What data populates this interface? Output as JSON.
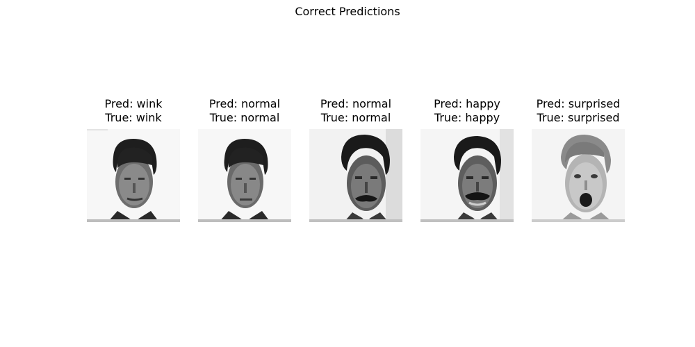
{
  "figure": {
    "title": "Correct Predictions"
  },
  "panels": [
    {
      "pred_label": "Pred: wink",
      "true_label": "True: wink",
      "face": "man-dark-hair-face-icon"
    },
    {
      "pred_label": "Pred: normal",
      "true_label": "True: normal",
      "face": "man-dark-hair-face-icon"
    },
    {
      "pred_label": "Pred: normal",
      "true_label": "True: normal",
      "face": "man-mustache-face-icon"
    },
    {
      "pred_label": "Pred: happy",
      "true_label": "True: happy",
      "face": "man-mustache-face-icon"
    },
    {
      "pred_label": "Pred: surprised",
      "true_label": "True: surprised",
      "face": "man-surprised-face-icon"
    }
  ]
}
